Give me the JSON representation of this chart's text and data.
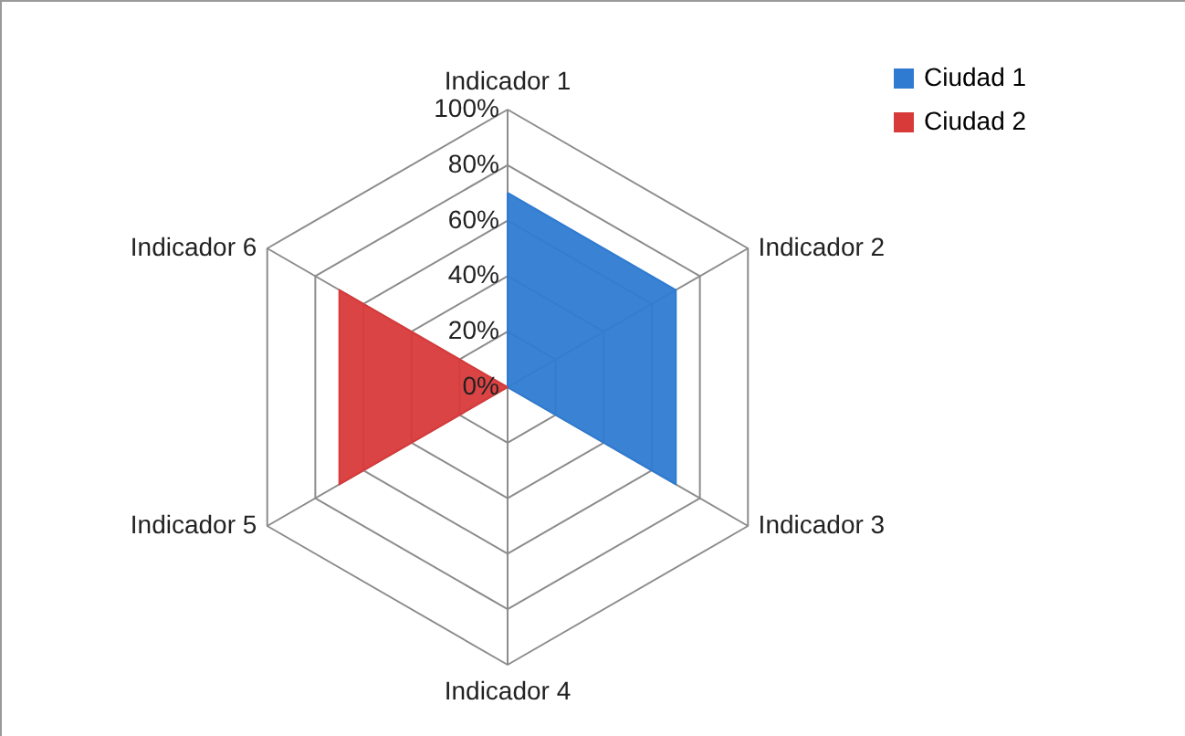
{
  "chart_data": {
    "type": "radar",
    "categories": [
      "Indicador 1",
      "Indicador 2",
      "Indicador 3",
      "Indicador 4",
      "Indicador 5",
      "Indicador 6"
    ],
    "series": [
      {
        "name": "Ciudad 1",
        "color": "#2f7bd1",
        "values": [
          70,
          70,
          70,
          0,
          0,
          0
        ]
      },
      {
        "name": "Ciudad 2",
        "color": "#d83a3a",
        "values": [
          0,
          0,
          0,
          0,
          70,
          70
        ]
      }
    ],
    "ylim": [
      0,
      100
    ],
    "yticks": [
      {
        "value": 0,
        "label": "0%"
      },
      {
        "value": 20,
        "label": "20%"
      },
      {
        "value": 40,
        "label": "40%"
      },
      {
        "value": 60,
        "label": "60%"
      },
      {
        "value": 80,
        "label": "80%"
      },
      {
        "value": 100,
        "label": "100%"
      }
    ],
    "grid": true,
    "legend": "top right",
    "marker": "none"
  }
}
